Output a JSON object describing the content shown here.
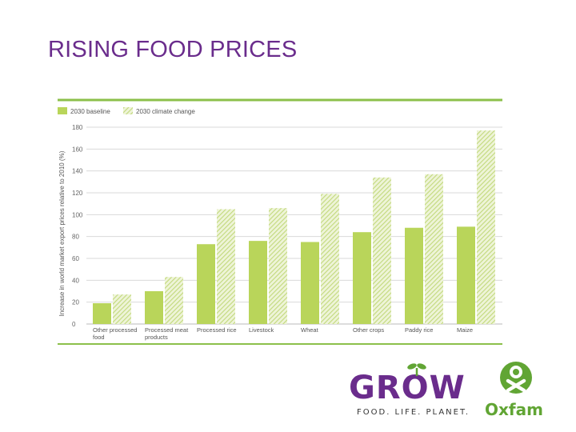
{
  "slide": {
    "title": "RISING FOOD PRICES"
  },
  "colors": {
    "title": "#6a2c8c",
    "baseline": "#b9d55a",
    "climate": "#c8dc86",
    "frame": "#8cc04a",
    "grid": "#d9d9d9",
    "label": "#555555"
  },
  "chart_data": {
    "type": "bar",
    "title": "",
    "ylabel": "Increase in world market export prices relative to 2010 (%)",
    "xlabel": "",
    "ylim": [
      0,
      180
    ],
    "yticks": [
      "0",
      "20",
      "40",
      "60",
      "80",
      "100",
      "120",
      "140",
      "160",
      "180"
    ],
    "grid": true,
    "legend_placement": "top-left",
    "categories": [
      [
        "Other processed",
        "food"
      ],
      [
        "Processed meat",
        "products"
      ],
      [
        "Processed rice"
      ],
      [
        "Livestock"
      ],
      [
        "Wheat"
      ],
      [
        "Other crops"
      ],
      [
        "Paddy rice"
      ],
      [
        "Maize"
      ]
    ],
    "series": [
      {
        "name": "2030 baseline",
        "values": [
          19,
          30,
          73,
          76,
          75,
          84,
          88,
          89
        ]
      },
      {
        "name": "2030 climate change",
        "values": [
          27,
          43,
          105,
          106,
          119,
          134,
          137,
          177
        ]
      }
    ]
  },
  "logos": {
    "grow": {
      "word": "GROW",
      "tagline": "FOOD. LIFE. PLANET."
    },
    "oxfam": {
      "word": "Oxfam"
    }
  }
}
